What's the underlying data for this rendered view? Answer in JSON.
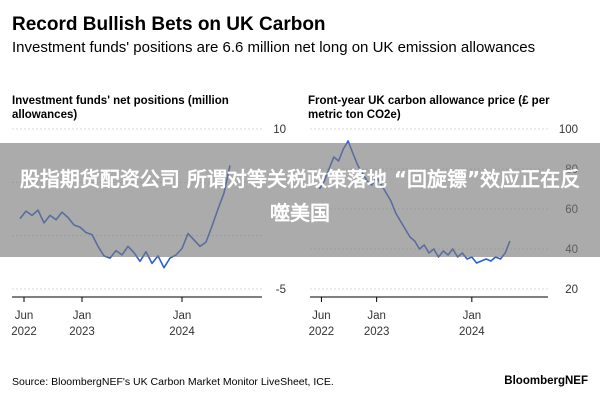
{
  "header": {
    "title": "Record Bullish Bets on UK Carbon",
    "subtitle": "Investment funds' positions are 6.6 million net long on UK emission allowances"
  },
  "overlay": {
    "text": "股指期货配资公司 所谓对等关税政策落地 “回旋镖”效应正在反噬美国"
  },
  "footer": {
    "source": "Source: BloombergNEF's UK Carbon Market Monitor LiveSheet, ICE.",
    "logo": "BloombergNEF"
  },
  "colors": {
    "line": "#2a5fd9",
    "grid": "#d9d9d9",
    "axis": "#000000"
  },
  "chart_data": [
    {
      "type": "line",
      "title": "Investment funds' net positions (million allowances)",
      "ylim": [
        -5,
        10
      ],
      "yticks": [
        10,
        5,
        0,
        -5
      ],
      "ytick_labels": [
        "10",
        "",
        "",
        "-5"
      ],
      "xlim": [
        2022.3,
        2024.8
      ],
      "xticks": [
        {
          "value": 2022.42,
          "label1": "Jun",
          "label2": "2022"
        },
        {
          "value": 2023.0,
          "label1": "Jan",
          "label2": "2023"
        },
        {
          "value": 2024.0,
          "label1": "Jan",
          "label2": "2024"
        }
      ],
      "series": [
        {
          "name": "Net positions",
          "x": [
            2022.38,
            2022.44,
            2022.5,
            2022.56,
            2022.62,
            2022.68,
            2022.74,
            2022.8,
            2022.86,
            2022.92,
            2022.98,
            2023.04,
            2023.1,
            2023.16,
            2023.22,
            2023.28,
            2023.34,
            2023.4,
            2023.46,
            2023.52,
            2023.58,
            2023.64,
            2023.7,
            2023.76,
            2023.82,
            2023.88,
            2023.94,
            2024.0,
            2024.06,
            2024.12,
            2024.18,
            2024.24,
            2024.3,
            2024.36,
            2024.42,
            2024.48
          ],
          "values": [
            1.6,
            2.3,
            1.9,
            2.4,
            1.2,
            1.9,
            1.5,
            2.2,
            1.7,
            1.0,
            0.8,
            0.3,
            0.1,
            -1.0,
            -1.9,
            -2.1,
            -1.4,
            -1.8,
            -1.0,
            -1.6,
            -2.4,
            -1.5,
            -2.6,
            -1.9,
            -3.0,
            -2.1,
            -1.8,
            -1.2,
            0.2,
            -0.4,
            -1.0,
            -0.6,
            0.9,
            2.5,
            4.0,
            6.6
          ]
        }
      ]
    },
    {
      "type": "line",
      "title": "Front-year UK carbon allowance price (£ per metric ton CO2e)",
      "ylim": [
        20,
        100
      ],
      "yticks": [
        100,
        80,
        60,
        40,
        20
      ],
      "ytick_labels": [
        "100",
        "80",
        "60",
        "40",
        "20"
      ],
      "xlim": [
        2022.3,
        2024.8
      ],
      "xticks": [
        {
          "value": 2022.42,
          "label1": "Jun",
          "label2": "2022"
        },
        {
          "value": 2023.0,
          "label1": "Jan",
          "label2": "2023"
        },
        {
          "value": 2024.0,
          "label1": "Jan",
          "label2": "2024"
        }
      ],
      "series": [
        {
          "name": "Price",
          "x": [
            2022.4,
            2022.45,
            2022.5,
            2022.55,
            2022.6,
            2022.65,
            2022.7,
            2022.75,
            2022.8,
            2022.85,
            2022.9,
            2022.95,
            2023.0,
            2023.05,
            2023.1,
            2023.15,
            2023.2,
            2023.25,
            2023.3,
            2023.35,
            2023.4,
            2023.45,
            2023.5,
            2023.55,
            2023.6,
            2023.65,
            2023.7,
            2023.75,
            2023.8,
            2023.85,
            2023.9,
            2023.95,
            2024.0,
            2024.05,
            2024.1,
            2024.15,
            2024.2,
            2024.25,
            2024.3,
            2024.35,
            2024.4
          ],
          "values": [
            70,
            74,
            80,
            86,
            84,
            90,
            94,
            88,
            82,
            78,
            74,
            72,
            76,
            72,
            68,
            64,
            58,
            54,
            50,
            46,
            44,
            40,
            42,
            38,
            40,
            36,
            39,
            37,
            40,
            36,
            38,
            35,
            36,
            33,
            34,
            35,
            34,
            36,
            35,
            38,
            44
          ]
        }
      ]
    }
  ]
}
